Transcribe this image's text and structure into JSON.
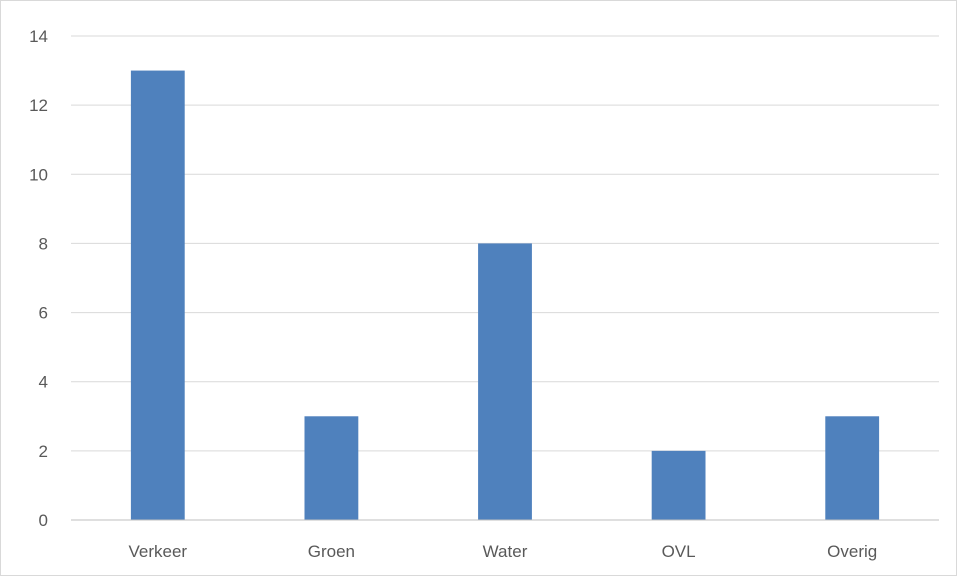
{
  "chart_data": {
    "type": "bar",
    "title": "",
    "xlabel": "",
    "ylabel": "",
    "categories": [
      "Verkeer",
      "Groen",
      "Water",
      "OVL",
      "Overig"
    ],
    "values": [
      13,
      3,
      8,
      2,
      3
    ],
    "ylim": [
      0,
      14
    ],
    "yticks": [
      0,
      2,
      4,
      6,
      8,
      10,
      12,
      14
    ],
    "grid": true,
    "legend": "none",
    "bar_color": "#4f81bd"
  }
}
